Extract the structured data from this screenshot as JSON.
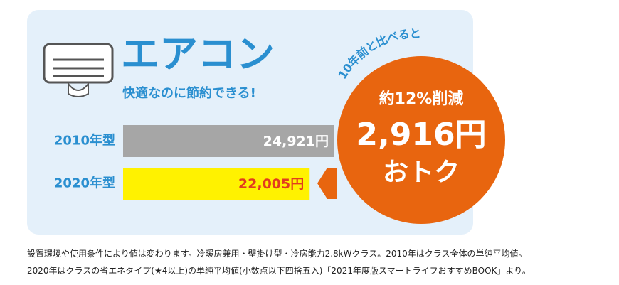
{
  "chart_data": {
    "type": "bar",
    "orientation": "horizontal",
    "title": "エアコン",
    "subtitle": "快適なのに節約できる!",
    "categories": [
      "2010年型",
      "2020年型"
    ],
    "values": [
      24921,
      22005
    ],
    "value_labels": [
      "24,921円",
      "22,005円"
    ],
    "colors": [
      "#a6a6a6",
      "#fff200"
    ],
    "label_colors": [
      "#ffffff",
      "#e23d1e"
    ],
    "badge": {
      "intro": "10年前と比べると",
      "reduction": "約12%削減",
      "amount": "2,916円",
      "label": "おトク"
    },
    "notes": [
      "設置環境や使用条件により値は変わります。冷暖房兼用・壁掛け型・冷房能力2.8kWクラス。2010年はクラス全体の単純平均値。",
      "2020年はクラスの省エネタイプ(★4以上)の単純平均値(小数点以下四捨五入)「2021年度版スマートライフおすすめBOOK」より。"
    ]
  }
}
